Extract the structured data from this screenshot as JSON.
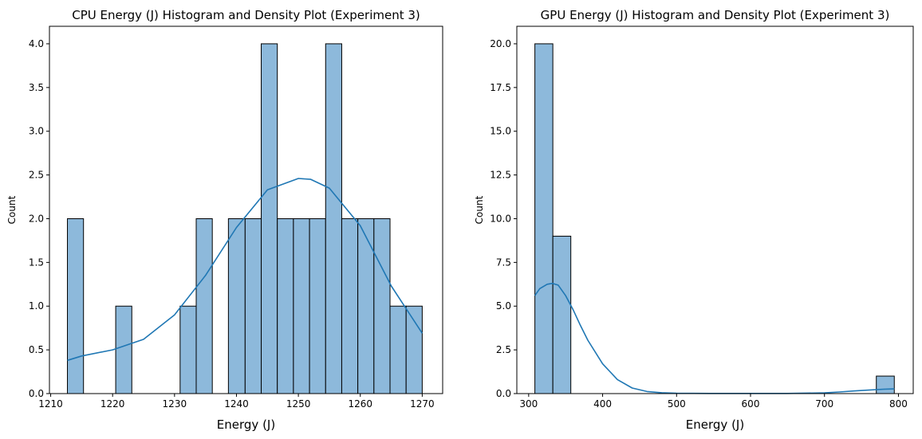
{
  "chart_data": [
    {
      "type": "bar",
      "subtype": "histogram-with-kde",
      "title": "CPU Energy (J) Histogram and Density Plot (Experiment 3)",
      "xlabel": "Energy (J)",
      "ylabel": "Count",
      "xlim": [
        1209.8,
        1273.3
      ],
      "ylim": [
        0,
        4.2
      ],
      "xticks": [
        1210,
        1220,
        1230,
        1240,
        1250,
        1260,
        1270
      ],
      "yticks": [
        "0.0",
        "0.5",
        "1.0",
        "1.5",
        "2.0",
        "2.5",
        "3.0",
        "3.5",
        "4.0"
      ],
      "bins": [
        {
          "x0": 1212.7,
          "x1": 1215.3,
          "count": 2
        },
        {
          "x0": 1215.3,
          "x1": 1217.9,
          "count": 0
        },
        {
          "x0": 1217.9,
          "x1": 1220.5,
          "count": 0
        },
        {
          "x0": 1220.5,
          "x1": 1223.1,
          "count": 1
        },
        {
          "x0": 1223.1,
          "x1": 1225.7,
          "count": 0
        },
        {
          "x0": 1225.7,
          "x1": 1228.3,
          "count": 0
        },
        {
          "x0": 1228.3,
          "x1": 1230.9,
          "count": 0
        },
        {
          "x0": 1230.9,
          "x1": 1233.5,
          "count": 1
        },
        {
          "x0": 1233.5,
          "x1": 1236.1,
          "count": 2
        },
        {
          "x0": 1236.1,
          "x1": 1238.7,
          "count": 0
        },
        {
          "x0": 1238.7,
          "x1": 1241.4,
          "count": 2
        },
        {
          "x0": 1241.4,
          "x1": 1244.0,
          "count": 2
        },
        {
          "x0": 1244.0,
          "x1": 1246.6,
          "count": 4
        },
        {
          "x0": 1246.6,
          "x1": 1249.2,
          "count": 2
        },
        {
          "x0": 1249.2,
          "x1": 1251.8,
          "count": 2
        },
        {
          "x0": 1251.8,
          "x1": 1254.4,
          "count": 2
        },
        {
          "x0": 1254.4,
          "x1": 1257.0,
          "count": 4
        },
        {
          "x0": 1257.0,
          "x1": 1259.6,
          "count": 2
        },
        {
          "x0": 1259.6,
          "x1": 1262.2,
          "count": 2
        },
        {
          "x0": 1262.2,
          "x1": 1264.8,
          "count": 2
        },
        {
          "x0": 1264.8,
          "x1": 1267.4,
          "count": 1
        },
        {
          "x0": 1267.4,
          "x1": 1270.0,
          "count": 1
        }
      ],
      "kde": {
        "x": [
          1212.7,
          1215,
          1220,
          1225,
          1230,
          1235,
          1240,
          1245,
          1250,
          1252,
          1255,
          1260,
          1265,
          1270
        ],
        "y": [
          0.38,
          0.43,
          0.5,
          0.62,
          0.9,
          1.35,
          1.9,
          2.33,
          2.46,
          2.45,
          2.35,
          1.92,
          1.23,
          0.69
        ]
      },
      "colors": {
        "bar": "#8db9db",
        "edge": "#000000",
        "kde": "#1f77b4"
      }
    },
    {
      "type": "bar",
      "subtype": "histogram-with-kde",
      "title": "GPU Energy (J) Histogram and Density Plot (Experiment 3)",
      "xlabel": "Energy (J)",
      "ylabel": "Count",
      "xlim": [
        284,
        820
      ],
      "ylim": [
        0,
        21
      ],
      "xticks": [
        300,
        400,
        500,
        600,
        700,
        800
      ],
      "yticks": [
        "0.0",
        "2.5",
        "5.0",
        "7.5",
        "10.0",
        "12.5",
        "15.0",
        "17.5",
        "20.0"
      ],
      "bins": [
        {
          "x0": 308.4,
          "x1": 332.7,
          "count": 20
        },
        {
          "x0": 332.7,
          "x1": 357.0,
          "count": 9
        },
        {
          "x0": 357.0,
          "x1": 381.3,
          "count": 0
        },
        {
          "x0": 381.3,
          "x1": 405.6,
          "count": 0
        },
        {
          "x0": 405.6,
          "x1": 429.9,
          "count": 0
        },
        {
          "x0": 429.9,
          "x1": 454.2,
          "count": 0
        },
        {
          "x0": 454.2,
          "x1": 478.5,
          "count": 0
        },
        {
          "x0": 478.5,
          "x1": 502.8,
          "count": 0
        },
        {
          "x0": 502.8,
          "x1": 527.1,
          "count": 0
        },
        {
          "x0": 527.1,
          "x1": 551.4,
          "count": 0
        },
        {
          "x0": 551.4,
          "x1": 575.7,
          "count": 0
        },
        {
          "x0": 575.7,
          "x1": 600.0,
          "count": 0
        },
        {
          "x0": 600.0,
          "x1": 624.3,
          "count": 0
        },
        {
          "x0": 624.3,
          "x1": 648.6,
          "count": 0
        },
        {
          "x0": 648.6,
          "x1": 672.9,
          "count": 0
        },
        {
          "x0": 672.9,
          "x1": 697.2,
          "count": 0
        },
        {
          "x0": 697.2,
          "x1": 721.5,
          "count": 0
        },
        {
          "x0": 721.5,
          "x1": 745.8,
          "count": 0
        },
        {
          "x0": 745.8,
          "x1": 770.1,
          "count": 0
        },
        {
          "x0": 770.1,
          "x1": 794.4,
          "count": 1
        }
      ],
      "kde": {
        "x": [
          308.4,
          315,
          325,
          332,
          340,
          350,
          360,
          370,
          380,
          400,
          420,
          440,
          460,
          480,
          500,
          550,
          600,
          650,
          700,
          720,
          740,
          760,
          780,
          794.4
        ],
        "y": [
          5.6,
          6.0,
          6.25,
          6.3,
          6.2,
          5.6,
          4.8,
          3.9,
          3.05,
          1.7,
          0.8,
          0.32,
          0.12,
          0.05,
          0.02,
          0.01,
          0.01,
          0.01,
          0.04,
          0.09,
          0.15,
          0.2,
          0.25,
          0.27
        ]
      },
      "colors": {
        "bar": "#8db9db",
        "edge": "#000000",
        "kde": "#1f77b4"
      }
    }
  ]
}
